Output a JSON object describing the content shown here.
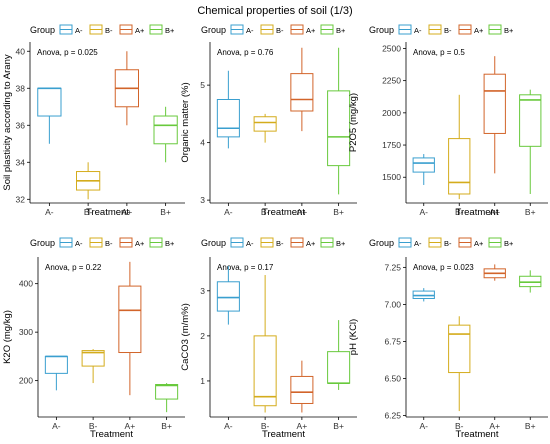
{
  "figure_title": "Chemical properties of soil (1/3)",
  "colors": {
    "A-": "#3a9fcf",
    "B-": "#d4ac1c",
    "A+": "#d2642a",
    "B+": "#68c93c"
  },
  "chart_data": [
    {
      "type": "box",
      "legend": {
        "title": "Group",
        "entries": [
          "A-",
          "B-",
          "A+",
          "B+"
        ],
        "placement": "top"
      },
      "annotation": "Anova, p = 0.025",
      "xlabel": "Treatment",
      "ylabel": "Soil plasticity according to Arany",
      "categories": [
        "A-",
        "B-",
        "A+",
        "B+"
      ],
      "ylim": [
        31.8,
        40.5
      ],
      "yticks": [
        32,
        34,
        36,
        38,
        40
      ],
      "yticklabels": [
        "32",
        "34",
        "36",
        "38",
        "40"
      ],
      "boxes": [
        {
          "group": "A-",
          "min": 35,
          "q1": 36.5,
          "median": 38,
          "q3": 38,
          "max": 38
        },
        {
          "group": "B-",
          "min": 32,
          "q1": 32.5,
          "median": 33,
          "q3": 33.5,
          "max": 34
        },
        {
          "group": "A+",
          "min": 36,
          "q1": 37,
          "median": 38,
          "q3": 39,
          "max": 40
        },
        {
          "group": "B+",
          "min": 34,
          "q1": 35,
          "median": 36,
          "q3": 36.5,
          "max": 37
        }
      ]
    },
    {
      "type": "box",
      "legend": {
        "title": "Group",
        "entries": [
          "A-",
          "B-",
          "A+",
          "B+"
        ],
        "placement": "top"
      },
      "annotation": "Anova, p = 0.76",
      "xlabel": "Treatment",
      "ylabel": "Organic matter (%)",
      "categories": [
        "A-",
        "B-",
        "A+",
        "B+"
      ],
      "ylim": [
        2.95,
        5.75
      ],
      "yticks": [
        3,
        4,
        5
      ],
      "yticklabels": [
        "3",
        "4",
        "5"
      ],
      "boxes": [
        {
          "group": "A-",
          "min": 3.9,
          "q1": 4.1,
          "median": 4.25,
          "q3": 4.75,
          "max": 5.25
        },
        {
          "group": "B-",
          "min": 4.0,
          "q1": 4.2,
          "median": 4.35,
          "q3": 4.45,
          "max": 4.5
        },
        {
          "group": "A+",
          "min": 4.2,
          "q1": 4.55,
          "median": 4.75,
          "q3": 5.2,
          "max": 5.65
        },
        {
          "group": "B+",
          "min": 3.1,
          "q1": 3.6,
          "median": 4.1,
          "q3": 4.9,
          "max": 5.65
        }
      ]
    },
    {
      "type": "box",
      "legend": {
        "title": "Group",
        "entries": [
          "A-",
          "B-",
          "A+",
          "B+"
        ],
        "placement": "top"
      },
      "annotation": "Anova, p = 0.5",
      "xlabel": "Treatment",
      "ylabel": "P2O5 (mg/kg)",
      "categories": [
        "A-",
        "B-",
        "A+",
        "B+"
      ],
      "ylim": [
        1300,
        2550
      ],
      "yticks": [
        1500,
        1750,
        2000,
        2250,
        2500
      ],
      "yticklabels": [
        "1500",
        "1750",
        "2000",
        "2250",
        "2500"
      ],
      "boxes": [
        {
          "group": "A-",
          "min": 1440,
          "q1": 1540,
          "median": 1610,
          "q3": 1650,
          "max": 1680
        },
        {
          "group": "B-",
          "min": 1330,
          "q1": 1370,
          "median": 1460,
          "q3": 1800,
          "max": 2140
        },
        {
          "group": "A+",
          "min": 1530,
          "q1": 1840,
          "median": 2170,
          "q3": 2300,
          "max": 2440
        },
        {
          "group": "B+",
          "min": 1370,
          "q1": 1740,
          "median": 2100,
          "q3": 2140,
          "max": 2180
        }
      ]
    },
    {
      "type": "box",
      "legend": {
        "title": "Group",
        "entries": [
          "A-",
          "B-",
          "A+",
          "B+"
        ],
        "placement": "top"
      },
      "annotation": "Anova, p = 0.22",
      "xlabel": "Treatment",
      "ylabel": "K2O (mg/kg)",
      "categories": [
        "A-",
        "B-",
        "A+",
        "B+"
      ],
      "ylim": [
        125,
        455
      ],
      "yticks": [
        200,
        300,
        400
      ],
      "yticklabels": [
        "200",
        "300",
        "400"
      ],
      "boxes": [
        {
          "group": "A-",
          "min": 180,
          "q1": 215,
          "median": 250,
          "q3": 250,
          "max": 250
        },
        {
          "group": "B-",
          "min": 195,
          "q1": 230,
          "median": 258,
          "q3": 262,
          "max": 265
        },
        {
          "group": "A+",
          "min": 170,
          "q1": 258,
          "median": 345,
          "q3": 395,
          "max": 445
        },
        {
          "group": "B+",
          "min": 135,
          "q1": 162,
          "median": 190,
          "q3": 192,
          "max": 195
        }
      ]
    },
    {
      "type": "box",
      "legend": {
        "title": "Group",
        "entries": [
          "A-",
          "B-",
          "A+",
          "B+"
        ],
        "placement": "top"
      },
      "annotation": "Anova, p = 0.17",
      "xlabel": "Treatment",
      "ylabel": "CaCO3 (m/m%)",
      "categories": [
        "A-",
        "B-",
        "A+",
        "B+"
      ],
      "ylim": [
        0.2,
        3.75
      ],
      "yticks": [
        1,
        2,
        3
      ],
      "yticklabels": [
        "1",
        "2",
        "3"
      ],
      "boxes": [
        {
          "group": "A-",
          "min": 2.25,
          "q1": 2.55,
          "median": 2.85,
          "q3": 3.2,
          "max": 3.55
        },
        {
          "group": "B-",
          "min": 0.3,
          "q1": 0.45,
          "median": 0.65,
          "q3": 2.0,
          "max": 3.35
        },
        {
          "group": "A+",
          "min": 0.3,
          "q1": 0.5,
          "median": 0.75,
          "q3": 1.1,
          "max": 1.45
        },
        {
          "group": "B+",
          "min": 0.8,
          "q1": 0.95,
          "median": 0.95,
          "q3": 1.65,
          "max": 2.35
        }
      ]
    },
    {
      "type": "box",
      "legend": {
        "title": "Group",
        "entries": [
          "A-",
          "B-",
          "A+",
          "B+"
        ],
        "placement": "top"
      },
      "annotation": "Anova, p = 0.023",
      "xlabel": "Treatment",
      "ylabel": "pH (KCl)",
      "categories": [
        "A-",
        "B-",
        "A+",
        "B+"
      ],
      "ylim": [
        6.24,
        7.32
      ],
      "yticks": [
        6.25,
        6.5,
        6.75,
        7.0,
        7.25
      ],
      "yticklabels": [
        "6.25",
        "6.50",
        "6.75",
        "7.00",
        "7.25"
      ],
      "boxes": [
        {
          "group": "A-",
          "min": 7.02,
          "q1": 7.04,
          "median": 7.06,
          "q3": 7.09,
          "max": 7.11
        },
        {
          "group": "B-",
          "min": 6.28,
          "q1": 6.54,
          "median": 6.8,
          "q3": 6.86,
          "max": 6.92
        },
        {
          "group": "A+",
          "min": 7.16,
          "q1": 7.18,
          "median": 7.21,
          "q3": 7.24,
          "max": 7.27
        },
        {
          "group": "B+",
          "min": 7.08,
          "q1": 7.12,
          "median": 7.15,
          "q3": 7.19,
          "max": 7.23
        }
      ]
    }
  ]
}
